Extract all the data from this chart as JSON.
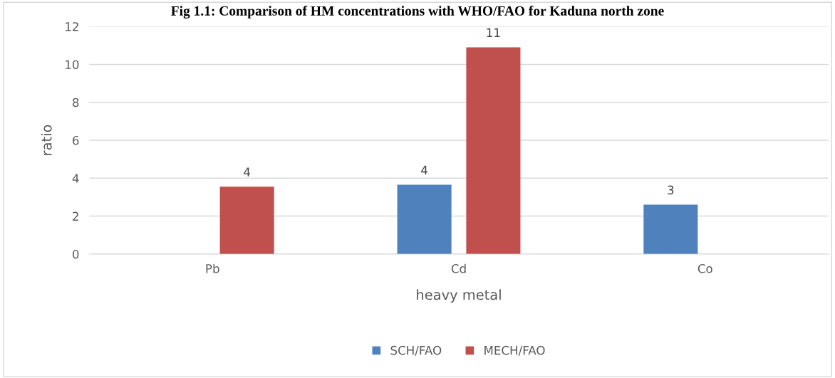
{
  "chart_data": {
    "type": "bar",
    "title": "Fig 1.1: Comparison of HM concentrations with WHO/FAO for Kaduna north zone",
    "xlabel": "heavy metal",
    "ylabel": "ratio",
    "categories": [
      "Pb",
      "Cd",
      "Co"
    ],
    "series": [
      {
        "name": "SCH/FAO",
        "color": "#4f81bd",
        "values": [
          null,
          3.65,
          2.6
        ],
        "value_labels": [
          null,
          "4",
          "3"
        ]
      },
      {
        "name": "MECH/FAO",
        "color": "#c0504d",
        "values": [
          3.55,
          10.9,
          null
        ],
        "value_labels": [
          "4",
          "11",
          null
        ]
      }
    ],
    "ylim": [
      0,
      12
    ],
    "yticks": [
      0,
      2,
      4,
      6,
      8,
      10,
      12
    ],
    "grid": "y",
    "legend": "bottom"
  }
}
